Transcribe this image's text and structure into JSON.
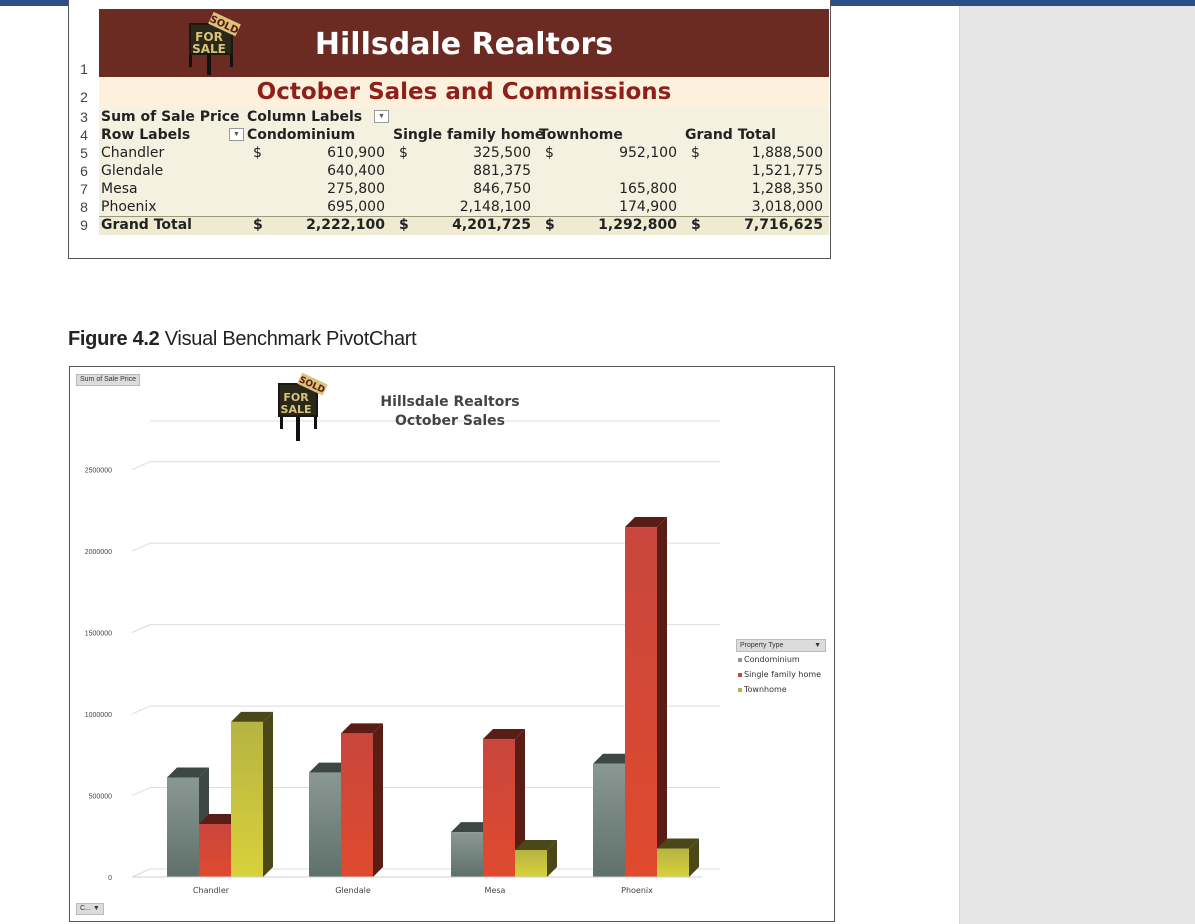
{
  "sheet": {
    "banner_title": "Hillsdale Realtors",
    "sub_title": "October Sales and Commissions",
    "row_numbers": [
      "1",
      "2",
      "3",
      "4",
      "5",
      "6",
      "7",
      "8",
      "9"
    ],
    "sum_label": "Sum of Sale Price",
    "column_labels": "Column Labels",
    "row_labels": "Row Labels",
    "headers": [
      "Condominium",
      "Single family home",
      "Townhome",
      "Grand Total"
    ],
    "currency": "$",
    "rows": [
      {
        "label": "Chandler",
        "values": [
          "610,900",
          "325,500",
          "952,100",
          "1,888,500"
        ]
      },
      {
        "label": "Glendale",
        "values": [
          "640,400",
          "881,375",
          "",
          "1,521,775"
        ]
      },
      {
        "label": "Mesa",
        "values": [
          "275,800",
          "846,750",
          "165,800",
          "1,288,350"
        ]
      },
      {
        "label": "Phoenix",
        "values": [
          "695,000",
          "2,148,100",
          "174,900",
          "3,018,000"
        ]
      }
    ],
    "total": {
      "label": "Grand Total",
      "values": [
        "2,222,100",
        "4,201,725",
        "1,292,800",
        "7,716,625"
      ]
    },
    "sign_text": {
      "top": "SOLD",
      "mid": "FOR",
      "bottom": "SALE"
    }
  },
  "caption": {
    "figure": "Figure 4.2",
    "text": "Visual Benchmark PivotChart"
  },
  "chart_data": {
    "type": "bar",
    "title_line1": "Hillsdale Realtors",
    "title_line2": "October Sales",
    "value_field_button": "Sum of Sale Price",
    "axis_field_button": "C...",
    "categories": [
      "Chandler",
      "Glendale",
      "Mesa",
      "Phoenix"
    ],
    "series": [
      {
        "name": "Condominium",
        "values": [
          610900,
          640400,
          275800,
          695000
        ],
        "color": "#8a9893"
      },
      {
        "name": "Single family home",
        "values": [
          325500,
          881375,
          846750,
          2148100
        ],
        "color": "#c8463d"
      },
      {
        "name": "Townhome",
        "values": [
          952100,
          0,
          165800,
          174900
        ],
        "color": "#b7b342"
      }
    ],
    "legend_title": "Property Type",
    "legend_position": "right",
    "yticks": [
      "0",
      "500000",
      "1000000",
      "1500000",
      "2000000",
      "2500000"
    ],
    "ylim": [
      0,
      2750000
    ],
    "grid": true,
    "bar_style": "3d"
  }
}
